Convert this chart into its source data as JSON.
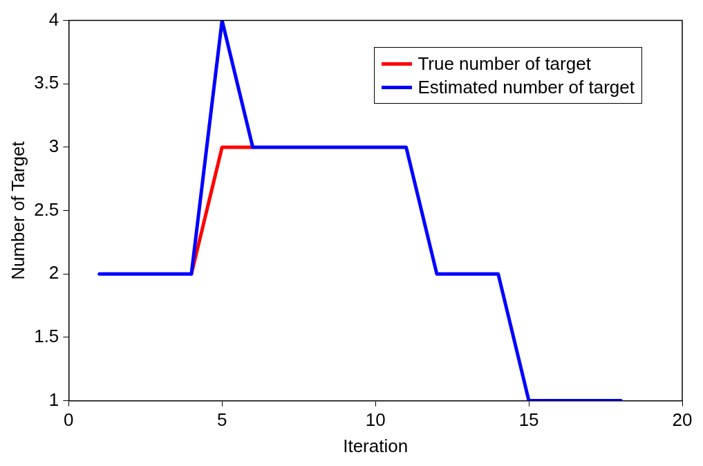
{
  "chart_data": {
    "type": "line",
    "xlabel": "Iteration",
    "ylabel": "Number of Target",
    "x": [
      1,
      2,
      3,
      4,
      5,
      6,
      7,
      8,
      9,
      10,
      11,
      12,
      13,
      14,
      15,
      16,
      17,
      18
    ],
    "series": [
      {
        "name": "True number of target",
        "color": "#ff0000",
        "values": [
          null,
          null,
          null,
          2,
          3,
          3,
          null,
          null,
          null,
          null,
          null,
          null,
          null,
          null,
          null,
          null,
          null,
          null
        ]
      },
      {
        "name": "Estimated number of target",
        "color": "#0000ff",
        "values": [
          2,
          2,
          2,
          2,
          4,
          3,
          3,
          3,
          3,
          3,
          3,
          2,
          2,
          2,
          1,
          1,
          1,
          1
        ]
      }
    ],
    "xlim": [
      0,
      20
    ],
    "xticks": [
      0,
      5,
      10,
      15,
      20
    ],
    "ylim": [
      1,
      4
    ],
    "yticks": [
      1,
      1.5,
      2,
      2.5,
      3,
      3.5,
      4
    ],
    "grid": false,
    "legend": "top right",
    "marker": "none",
    "line_style": "solid"
  }
}
